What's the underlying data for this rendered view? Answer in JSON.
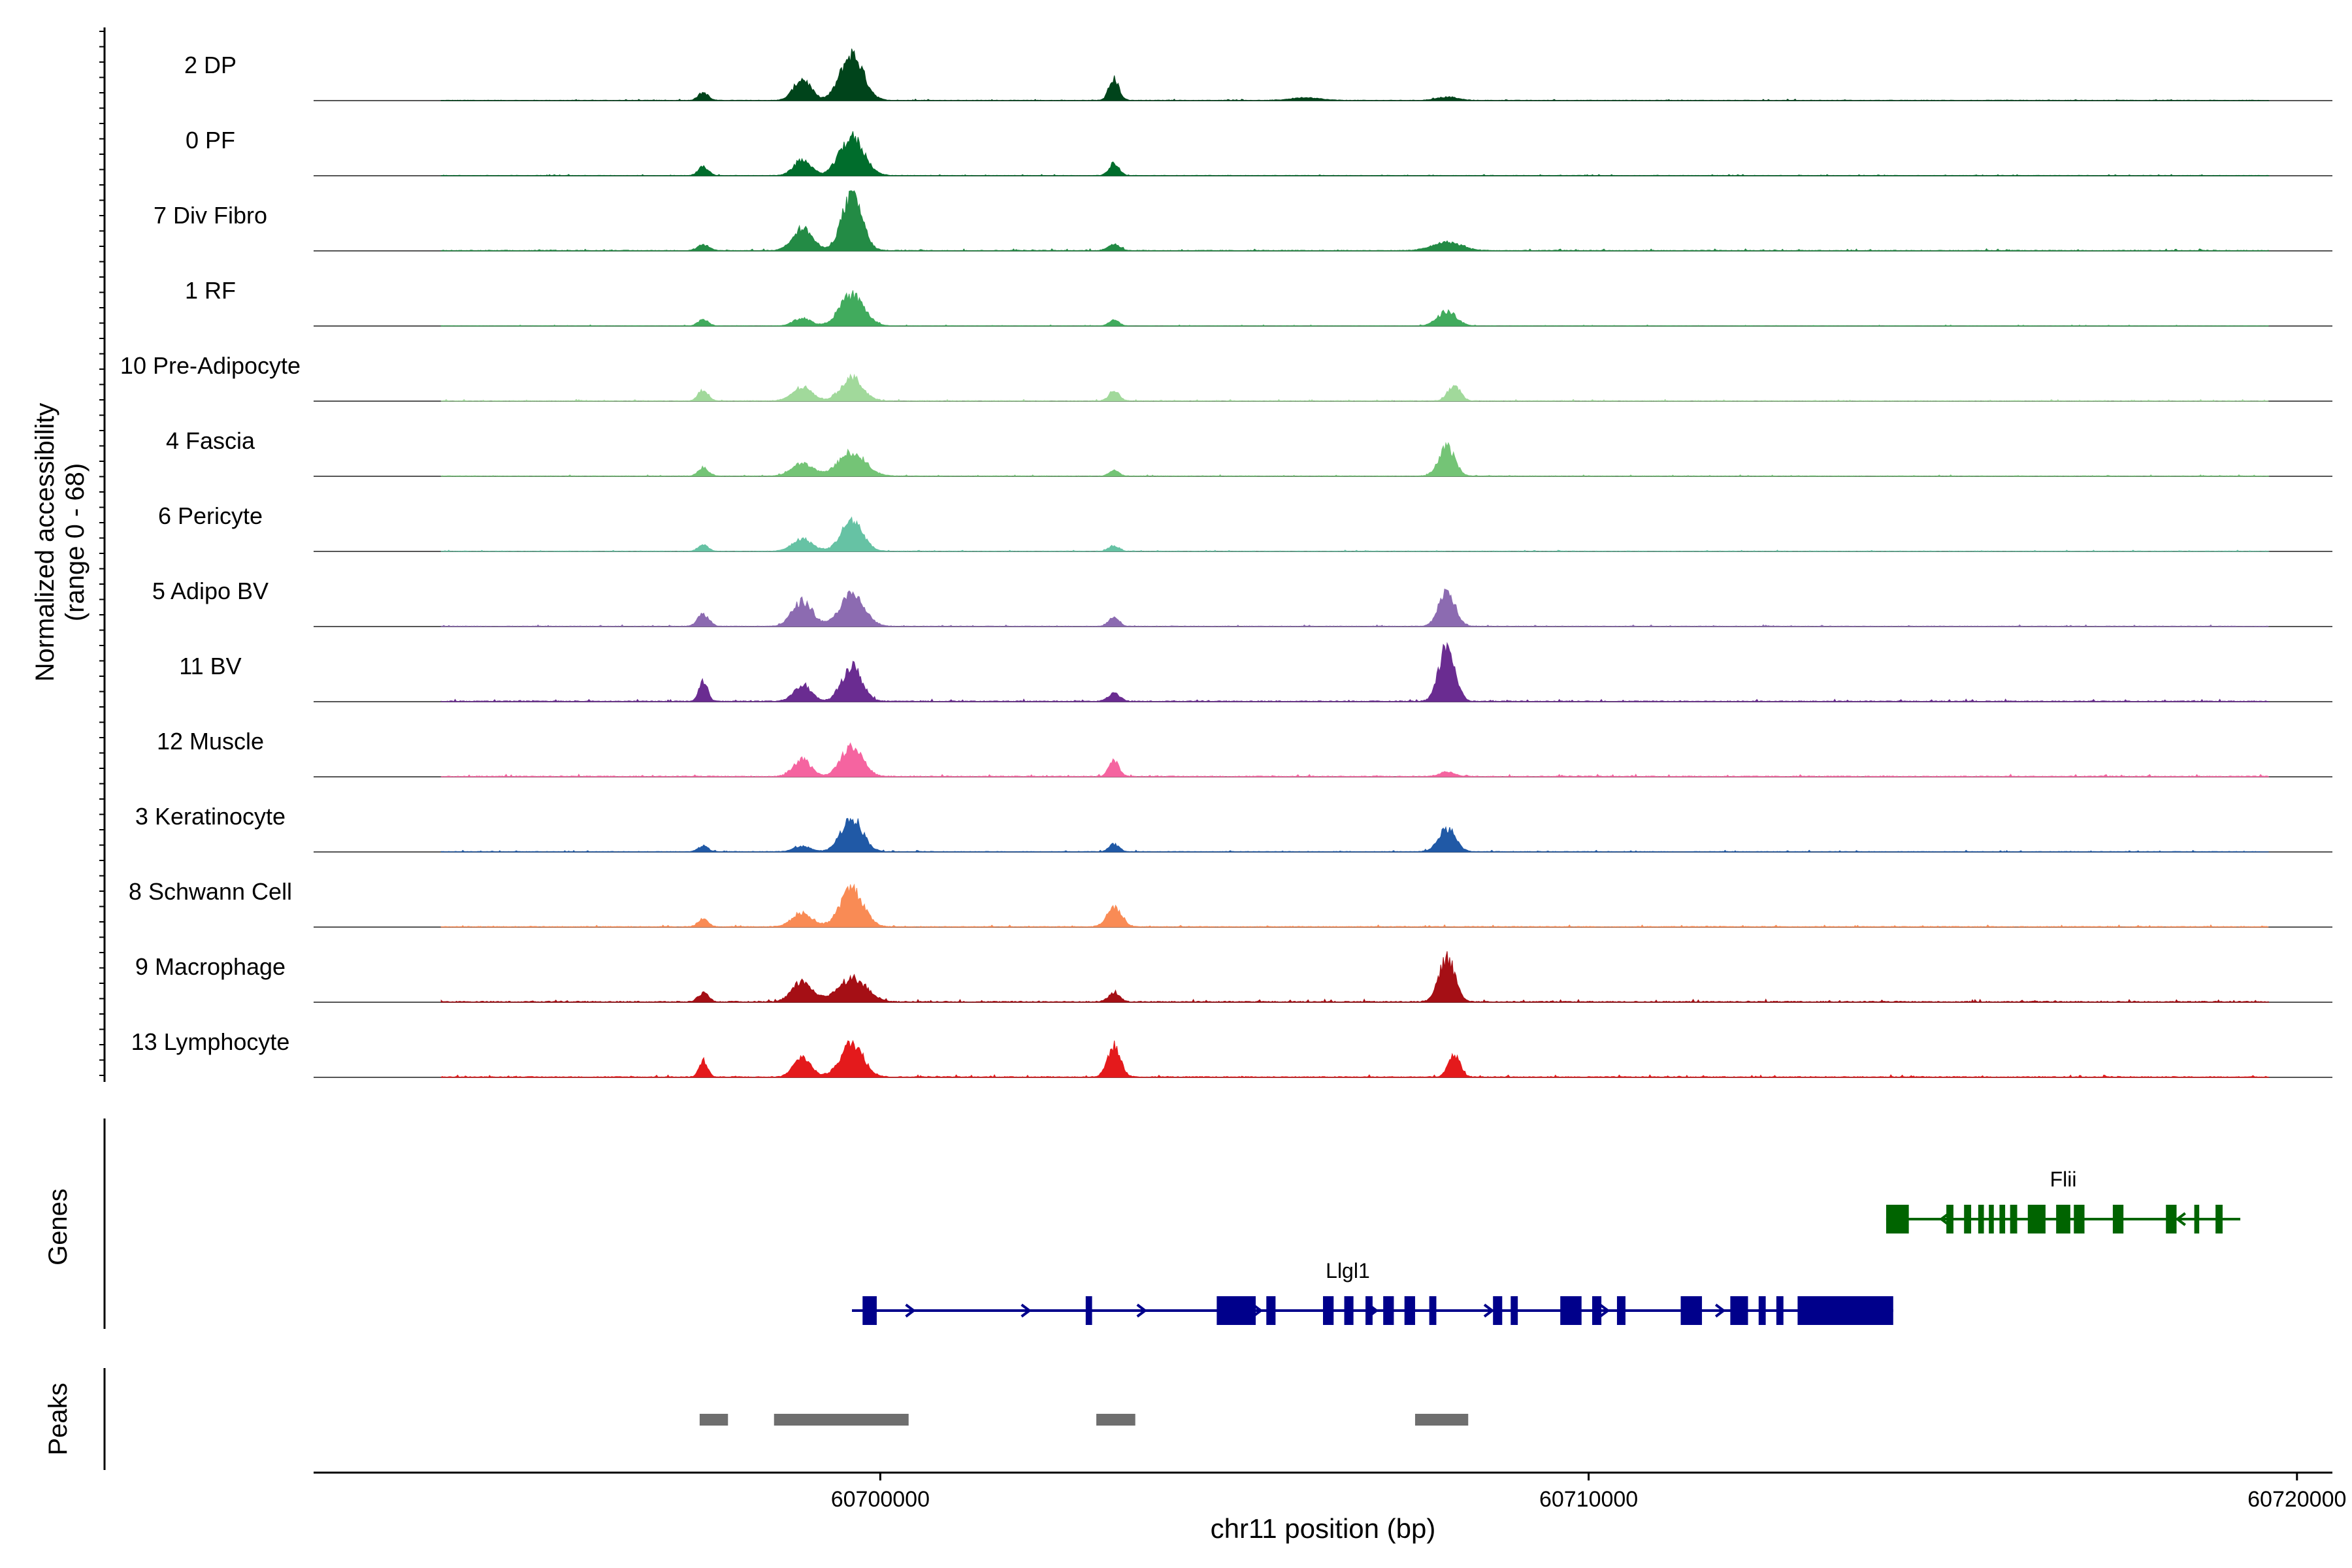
{
  "chart_data": {
    "type": "area",
    "title": "",
    "ylabel_line1": "Normalized accessibility",
    "ylabel_line2": "(range 0 - 68)",
    "xlabel": "chr11 position (bp)",
    "xlim": [
      60692000,
      60720500
    ],
    "x_ticks": [
      60700000,
      60710000,
      60720000
    ],
    "x_tick_labels": [
      "60700000",
      "60710000",
      "60720000"
    ],
    "tracks": [
      {
        "name": "2 DP",
        "color": "#00441b",
        "noise": 0.035,
        "peaks": [
          [
            60697500,
            0.14,
            70
          ],
          [
            60698900,
            0.38,
            120
          ],
          [
            60699600,
            0.82,
            160
          ],
          [
            60703300,
            0.38,
            70
          ],
          [
            60708000,
            0.06,
            150
          ],
          [
            60706000,
            0.05,
            200
          ]
        ]
      },
      {
        "name": "0 PF",
        "color": "#006d2c",
        "noise": 0.03,
        "peaks": [
          [
            60697500,
            0.16,
            70
          ],
          [
            60698900,
            0.28,
            120
          ],
          [
            60699600,
            0.68,
            170
          ],
          [
            60703300,
            0.22,
            70
          ]
        ]
      },
      {
        "name": "7 Div Fibro",
        "color": "#238b45",
        "noise": 0.05,
        "peaks": [
          [
            60697500,
            0.1,
            80
          ],
          [
            60698900,
            0.4,
            140
          ],
          [
            60699600,
            1.0,
            140
          ],
          [
            60703300,
            0.12,
            80
          ],
          [
            60708000,
            0.15,
            200
          ]
        ]
      },
      {
        "name": "1 RF",
        "color": "#41ab5d",
        "noise": 0.025,
        "peaks": [
          [
            60697500,
            0.12,
            70
          ],
          [
            60698900,
            0.14,
            120
          ],
          [
            60699600,
            0.55,
            170
          ],
          [
            60703300,
            0.1,
            70
          ],
          [
            60708000,
            0.26,
            130
          ]
        ]
      },
      {
        "name": "10 Pre-Adipocyte",
        "color": "#a1d99b",
        "noise": 0.04,
        "peaks": [
          [
            60697500,
            0.2,
            70
          ],
          [
            60698900,
            0.24,
            140
          ],
          [
            60699600,
            0.42,
            150
          ],
          [
            60703300,
            0.18,
            70
          ],
          [
            60708100,
            0.26,
            90
          ]
        ]
      },
      {
        "name": "4 Fascia",
        "color": "#74c476",
        "noise": 0.035,
        "peaks": [
          [
            60697500,
            0.15,
            70
          ],
          [
            60698900,
            0.22,
            150
          ],
          [
            60699600,
            0.42,
            190
          ],
          [
            60703300,
            0.1,
            70
          ],
          [
            60708000,
            0.52,
            110
          ]
        ]
      },
      {
        "name": "6 Pericyte",
        "color": "#66c2a4",
        "noise": 0.03,
        "peaks": [
          [
            60697500,
            0.12,
            70
          ],
          [
            60698900,
            0.22,
            140
          ],
          [
            60699600,
            0.55,
            150
          ],
          [
            60703300,
            0.1,
            70
          ]
        ]
      },
      {
        "name": "5 Adipo BV",
        "color": "#8c6bb1",
        "noise": 0.04,
        "peaks": [
          [
            60697500,
            0.22,
            80
          ],
          [
            60698900,
            0.45,
            140
          ],
          [
            60699600,
            0.56,
            170
          ],
          [
            60703300,
            0.18,
            70
          ],
          [
            60708000,
            0.64,
            110
          ]
        ]
      },
      {
        "name": "11 BV",
        "color": "#6a2c91",
        "noise": 0.06,
        "peaks": [
          [
            60697500,
            0.35,
            60
          ],
          [
            60698900,
            0.3,
            120
          ],
          [
            60699600,
            0.62,
            140
          ],
          [
            60703300,
            0.14,
            80
          ],
          [
            60708000,
            1.0,
            110
          ]
        ]
      },
      {
        "name": "12 Muscle",
        "color": "#f564a0",
        "noise": 0.06,
        "peaks": [
          [
            60698900,
            0.3,
            120
          ],
          [
            60699600,
            0.55,
            150
          ],
          [
            60703300,
            0.28,
            70
          ],
          [
            60708000,
            0.08,
            100
          ]
        ]
      },
      {
        "name": "3 Keratinocyte",
        "color": "#2059a6",
        "noise": 0.04,
        "peaks": [
          [
            60697500,
            0.1,
            70
          ],
          [
            60698900,
            0.1,
            120
          ],
          [
            60699600,
            0.6,
            150
          ],
          [
            60703300,
            0.14,
            70
          ],
          [
            60708000,
            0.4,
            120
          ]
        ]
      },
      {
        "name": "8 Schwann Cell",
        "color": "#f98b55",
        "noise": 0.05,
        "peaks": [
          [
            60697500,
            0.14,
            70
          ],
          [
            60698900,
            0.24,
            140
          ],
          [
            60699600,
            0.68,
            160
          ],
          [
            60703300,
            0.36,
            100
          ]
        ]
      },
      {
        "name": "9 Macrophage",
        "color": "#a50f15",
        "noise": 0.07,
        "peaks": [
          [
            60697500,
            0.16,
            70
          ],
          [
            60698900,
            0.36,
            140
          ],
          [
            60699600,
            0.42,
            200
          ],
          [
            60703300,
            0.16,
            80
          ],
          [
            60708000,
            0.78,
            110
          ]
        ]
      },
      {
        "name": "13 Lymphocyte",
        "color": "#e41a1c",
        "noise": 0.06,
        "peaks": [
          [
            60697500,
            0.3,
            60
          ],
          [
            60698900,
            0.35,
            120
          ],
          [
            60699600,
            0.6,
            160
          ],
          [
            60703300,
            0.55,
            90
          ],
          [
            60708100,
            0.4,
            80
          ]
        ]
      }
    ],
    "genes": [
      {
        "name": "Flii",
        "color": "#006400",
        "start": 60714200,
        "end": 60719200,
        "strand": "-",
        "exons": [
          [
            60714200,
            60714520
          ],
          [
            60715050,
            60715150
          ],
          [
            60715300,
            60715400
          ],
          [
            60715500,
            60715580
          ],
          [
            60715650,
            60715720
          ],
          [
            60715800,
            60715880
          ],
          [
            60715950,
            60716050
          ],
          [
            60716200,
            60716450
          ],
          [
            60716600,
            60716800
          ],
          [
            60716850,
            60717000
          ],
          [
            60717400,
            60717550
          ],
          [
            60718150,
            60718300
          ],
          [
            60718550,
            60718620
          ],
          [
            60718850,
            60718950
          ]
        ]
      },
      {
        "name": "Llgl1",
        "color": "#00008b",
        "start": 60699600,
        "end": 60714300,
        "strand": "+",
        "exons": [
          [
            60699750,
            60699950
          ],
          [
            60702900,
            60702990
          ],
          [
            60704750,
            60705300
          ],
          [
            60705450,
            60705580
          ],
          [
            60706250,
            60706400
          ],
          [
            60706550,
            60706680
          ],
          [
            60706850,
            60706950
          ],
          [
            60707100,
            60707250
          ],
          [
            60707400,
            60707550
          ],
          [
            60707750,
            60707850
          ],
          [
            60708650,
            60708780
          ],
          [
            60708900,
            60709000
          ],
          [
            60709600,
            60709900
          ],
          [
            60710050,
            60710180
          ],
          [
            60710400,
            60710520
          ],
          [
            60711300,
            60711600
          ],
          [
            60712000,
            60712250
          ],
          [
            60712400,
            60712500
          ],
          [
            60712650,
            60712750
          ],
          [
            60712950,
            60714300
          ]
        ]
      }
    ],
    "gene_track_label": "Genes",
    "peak_track_label": "Peaks",
    "peak_color": "#6e6e6e",
    "peak_regions": [
      [
        60697450,
        60697850
      ],
      [
        60698500,
        60700400
      ],
      [
        60703050,
        60703600
      ],
      [
        60707550,
        60708300
      ]
    ]
  }
}
